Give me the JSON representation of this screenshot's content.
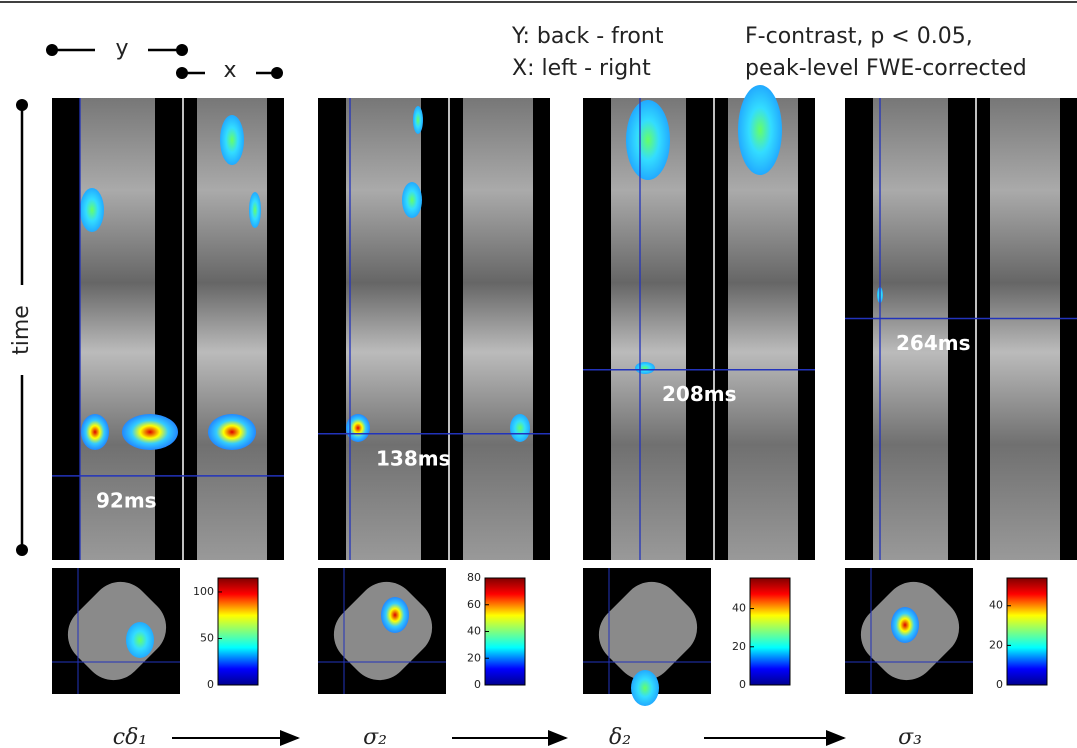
{
  "legend": {
    "y": "y",
    "x": "x",
    "axes": [
      "Y: back - front",
      "X: left - right"
    ],
    "contrast": [
      "F-contrast, p < 0.05,",
      "peak-level FWE-corrected"
    ],
    "time": "time"
  },
  "time_range": [
    0,
    505
  ],
  "panels": [
    {
      "label": "cδ₁",
      "time": 92,
      "time_label": "92ms",
      "clim": [
        0,
        115
      ],
      "cticks": [
        0,
        50,
        100
      ]
    },
    {
      "label": "σ₂",
      "time": 138,
      "time_label": "138ms",
      "clim": [
        0,
        80
      ],
      "cticks": [
        0,
        20,
        40,
        60,
        80
      ]
    },
    {
      "label": "δ₂",
      "time": 208,
      "time_label": "208ms",
      "clim": [
        0,
        56
      ],
      "cticks": [
        0,
        20,
        40
      ]
    },
    {
      "label": "σ₃",
      "time": 264,
      "time_label": "264ms",
      "clim": [
        0,
        54
      ],
      "cticks": [
        0,
        20,
        40
      ]
    }
  ]
}
